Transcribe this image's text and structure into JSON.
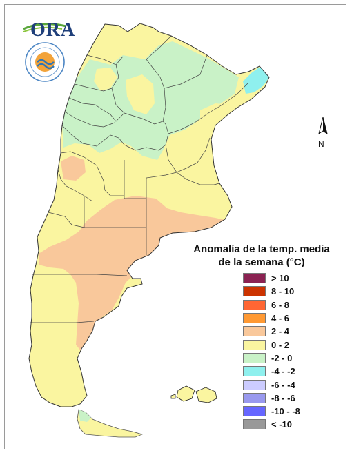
{
  "logo": {
    "text": "ORA",
    "seal_text": "INSTITUTO NACIONAL DE TECNOLOGIA",
    "seal_country": "ARGENTINA"
  },
  "north_arrow": {
    "label": "N"
  },
  "legend": {
    "title_line1": "Anomalía de la temp. media",
    "title_line2": "de la semana (°C)",
    "items": [
      {
        "label": "> 10",
        "color": "#8B2252"
      },
      {
        "label": "8 - 10",
        "color": "#CC3300"
      },
      {
        "label": "6 - 8",
        "color": "#FF6633"
      },
      {
        "label": "4 - 6",
        "color": "#FF9933"
      },
      {
        "label": "2 - 4",
        "color": "#F9C89B"
      },
      {
        "label": "0 - 2",
        "color": "#FAF5A0"
      },
      {
        "label": "-2 - 0",
        "color": "#C9F2C7"
      },
      {
        "label": "-4 - -2",
        "color": "#8FF0EE"
      },
      {
        "label": "-6 - -4",
        "color": "#CCCCFF"
      },
      {
        "label": "-8 - -6",
        "color": "#9999EE"
      },
      {
        "label": "-10 - -8",
        "color": "#6666FF"
      },
      {
        "label": "< -10",
        "color": "#999999"
      }
    ]
  }
}
